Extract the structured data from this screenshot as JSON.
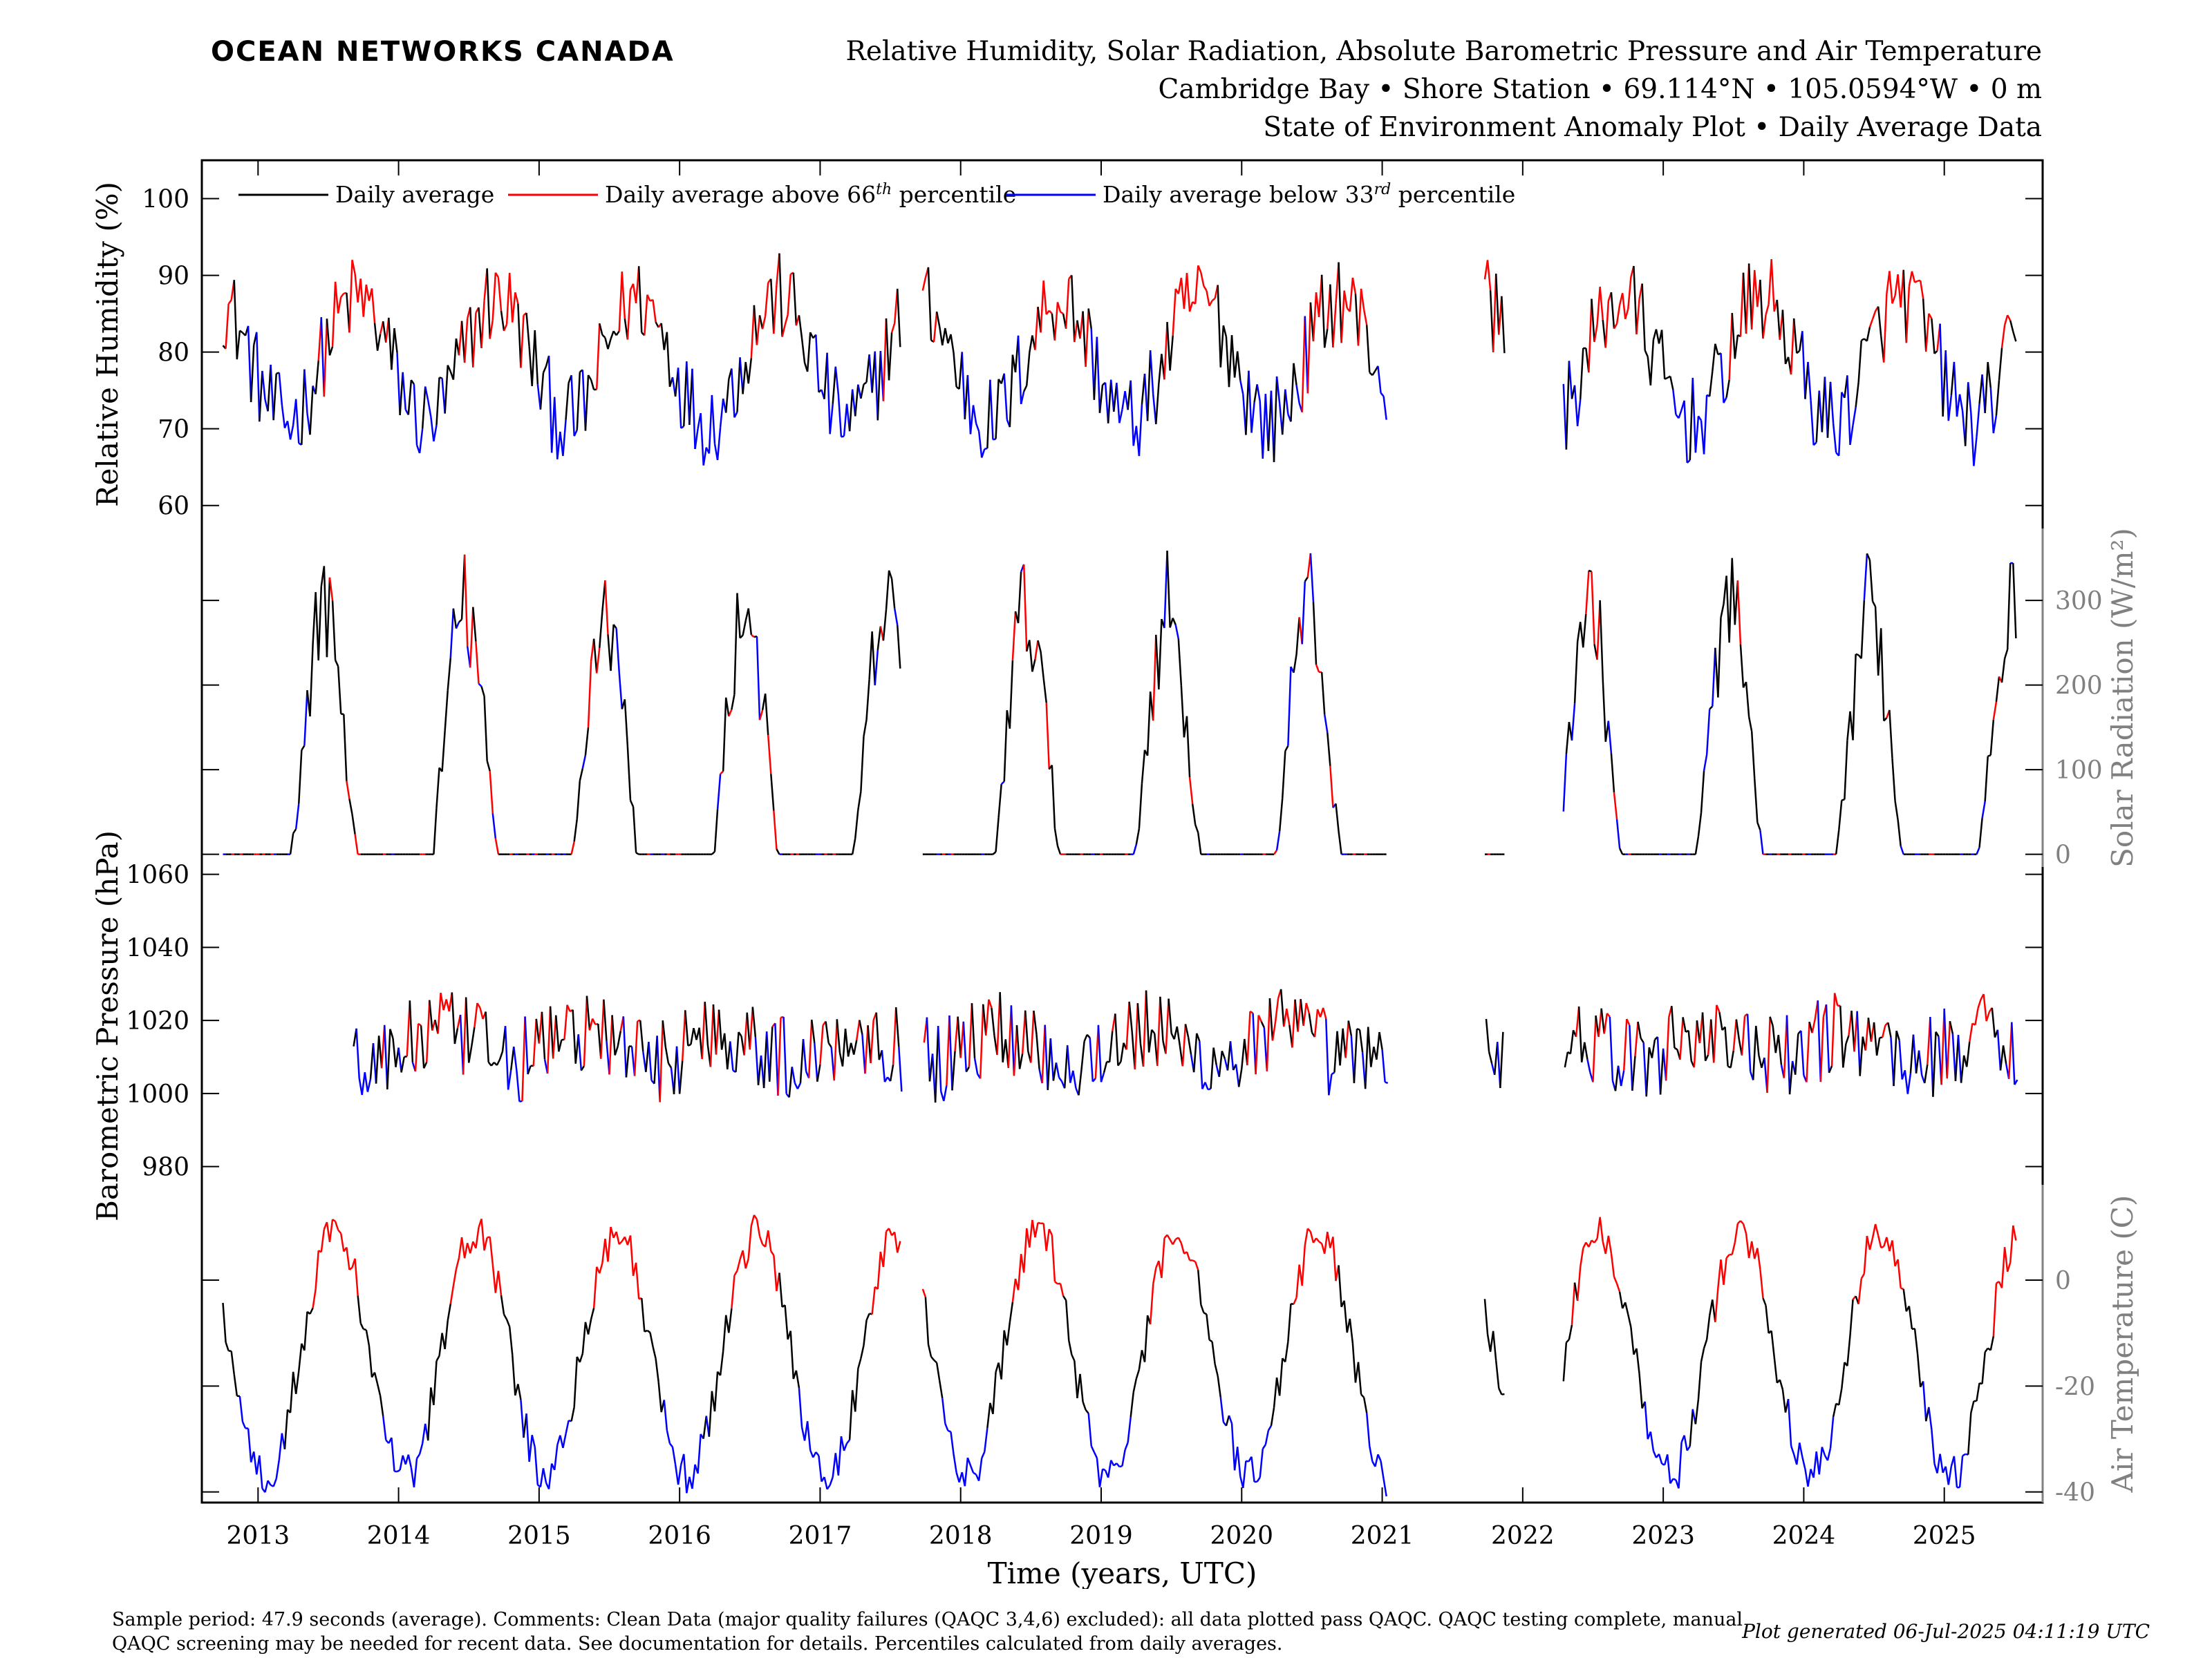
{
  "header": {
    "brand": "OCEAN NETWORKS CANADA",
    "title_line1": "Relative Humidity, Solar Radiation, Absolute Barometric Pressure and Air Temperature",
    "title_line2": "Cambridge Bay • Shore Station • 69.114°N • 105.0594°W • 0 m",
    "title_line3": "State of Environment Anomaly Plot • Daily Average Data"
  },
  "footer": {
    "note": "Sample period: 47.9 seconds (average). Comments: Clean Data (major quality failures (QAQC 3,4,6) excluded): all data plotted pass QAQC. QAQC testing complete, manual QAQC screening may be needed for recent data. See documentation for details. Percentiles calculated from daily averages.",
    "generated": "Plot generated 06-Jul-2025 04:11:19 UTC"
  },
  "colors": {
    "average": "#000000",
    "above": "#ff0000",
    "below": "#0000ff",
    "right_axis": "#808080"
  },
  "chart_data": {
    "type": "line",
    "xlabel": "Time (years, UTC)",
    "x_ticks": [
      "2013",
      "2014",
      "2015",
      "2016",
      "2017",
      "2018",
      "2019",
      "2020",
      "2021",
      "2022",
      "2023",
      "2024",
      "2025"
    ],
    "xlim": [
      2012.6,
      2025.7
    ],
    "legend": {
      "placement": "top-left",
      "entries": [
        {
          "key": "average",
          "label": "Daily average"
        },
        {
          "key": "above",
          "label_main": "Daily average above 66",
          "label_sup": "th",
          "label_end": " percentile"
        },
        {
          "key": "below",
          "label_main": "Daily average below 33",
          "label_sup": "rd",
          "label_end": " percentile"
        }
      ]
    },
    "data_segments": [
      [
        2012.75,
        2017.58
      ],
      [
        2017.72,
        2021.04
      ],
      [
        2021.72,
        2021.87
      ],
      [
        2022.28,
        2025.52
      ]
    ],
    "panels": [
      {
        "id": "relative_humidity",
        "ylabel": "Relative Humidity (%)",
        "axis_side": "left",
        "ylim": [
          57,
          105
        ],
        "yticks": [
          60,
          70,
          80,
          90,
          100
        ],
        "series": {
          "start": 2012.75,
          "end": 2025.52,
          "step_years": 0.02,
          "annual_mean": 79,
          "seasonal_amplitude": 8,
          "peak_fraction": 0.7,
          "noise": 6
        }
      },
      {
        "id": "solar_radiation",
        "ylabel": "Solar Radiation (W/m²)",
        "axis_side": "right",
        "ylim": [
          -15,
          385
        ],
        "yticks": [
          0,
          100,
          200,
          300
        ],
        "series": {
          "start": 2012.75,
          "end": 2025.52,
          "step_years": 0.02,
          "kind": "solar",
          "summer_peak": 290,
          "noise": 60
        }
      },
      {
        "id": "barometric_pressure",
        "ylabel": "Barometric Pressure (hPa)",
        "axis_side": "left",
        "ylim": [
          975,
          1062
        ],
        "yticks": [
          980,
          1000,
          1020,
          1040,
          1060
        ],
        "series": {
          "start": 2013.68,
          "end": 2025.52,
          "step_years": 0.02,
          "annual_mean": 1013,
          "seasonal_amplitude": 4,
          "peak_fraction": 0.3,
          "noise": 12
        }
      },
      {
        "id": "air_temperature",
        "ylabel": "Air Temperature (C)",
        "axis_side": "right",
        "ylim": [
          -42,
          18
        ],
        "yticks": [
          -40,
          -20,
          0
        ],
        "series": {
          "start": 2012.75,
          "end": 2025.52,
          "step_years": 0.02,
          "annual_mean": -14,
          "seasonal_amplitude": 23,
          "peak_fraction": 0.55,
          "noise": 4
        }
      }
    ]
  }
}
